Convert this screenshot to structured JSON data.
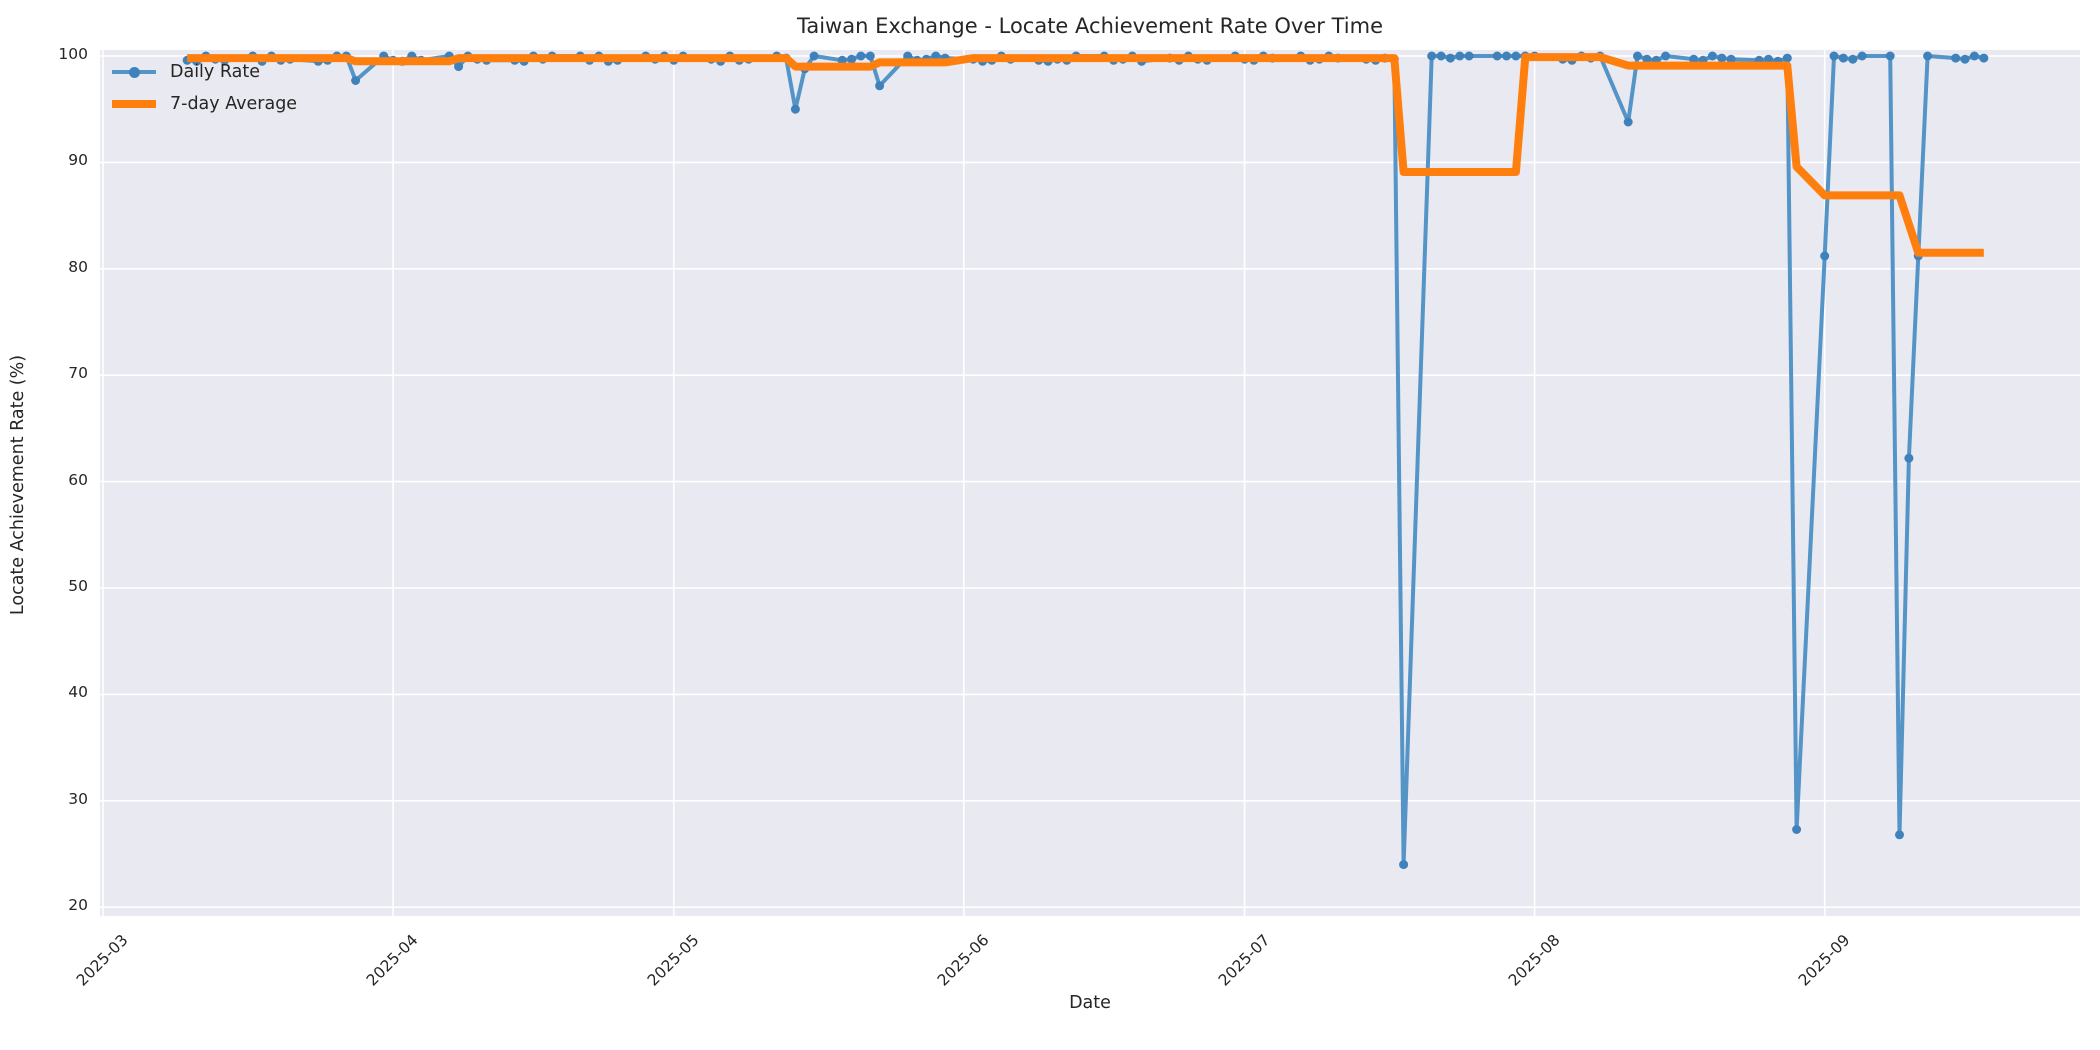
{
  "title": "Taiwan Exchange - Locate Achievement Rate Over Time",
  "axes": {
    "xlabel": "Date",
    "ylabel": "Locate Achievement Rate (%)"
  },
  "colors": {
    "background": "#e9e9f1",
    "grid": "#ffffff",
    "text": "#262626",
    "daily_line": "#5494c7",
    "daily_marker": "#3f82bb",
    "avg_line": "#ff7f0e"
  },
  "chart_data": {
    "type": "line",
    "title": "Taiwan Exchange - Locate Achievement Rate Over Time",
    "xlabel": "Date",
    "ylabel": "Locate Achievement Rate (%)",
    "grid": true,
    "legend_position": "upper left",
    "background": "#e9e9f1",
    "ylim": [
      18.8,
      100.6
    ],
    "y_ticks": [
      20,
      30,
      40,
      50,
      60,
      70,
      80,
      90,
      100
    ],
    "x_ticks": [
      {
        "label": "2025-03",
        "date": "2025-03-01"
      },
      {
        "label": "2025-04",
        "date": "2025-04-01"
      },
      {
        "label": "2025-05",
        "date": "2025-05-01"
      },
      {
        "label": "2025-06",
        "date": "2025-06-01"
      },
      {
        "label": "2025-07",
        "date": "2025-07-01"
      },
      {
        "label": "2025-08",
        "date": "2025-08-01"
      },
      {
        "label": "2025-09",
        "date": "2025-09-01"
      }
    ],
    "x": [
      "2025-03-10",
      "2025-03-11",
      "2025-03-12",
      "2025-03-13",
      "2025-03-14",
      "2025-03-17",
      "2025-03-18",
      "2025-03-19",
      "2025-03-20",
      "2025-03-21",
      "2025-03-24",
      "2025-03-25",
      "2025-03-26",
      "2025-03-27",
      "2025-03-28",
      "2025-03-31",
      "2025-04-01",
      "2025-04-02",
      "2025-04-03",
      "2025-04-04",
      "2025-04-07",
      "2025-04-08",
      "2025-04-09",
      "2025-04-10",
      "2025-04-11",
      "2025-04-14",
      "2025-04-15",
      "2025-04-16",
      "2025-04-17",
      "2025-04-18",
      "2025-04-21",
      "2025-04-22",
      "2025-04-23",
      "2025-04-24",
      "2025-04-25",
      "2025-04-28",
      "2025-04-29",
      "2025-04-30",
      "2025-05-01",
      "2025-05-02",
      "2025-05-05",
      "2025-05-06",
      "2025-05-07",
      "2025-05-08",
      "2025-05-09",
      "2025-05-12",
      "2025-05-13",
      "2025-05-14",
      "2025-05-15",
      "2025-05-16",
      "2025-05-19",
      "2025-05-20",
      "2025-05-21",
      "2025-05-22",
      "2025-05-23",
      "2025-05-26",
      "2025-05-27",
      "2025-05-28",
      "2025-05-29",
      "2025-05-30",
      "2025-06-02",
      "2025-06-03",
      "2025-06-04",
      "2025-06-05",
      "2025-06-06",
      "2025-06-09",
      "2025-06-10",
      "2025-06-11",
      "2025-06-12",
      "2025-06-13",
      "2025-06-16",
      "2025-06-17",
      "2025-06-18",
      "2025-06-19",
      "2025-06-20",
      "2025-06-23",
      "2025-06-24",
      "2025-06-25",
      "2025-06-26",
      "2025-06-27",
      "2025-06-30",
      "2025-07-01",
      "2025-07-02",
      "2025-07-03",
      "2025-07-04",
      "2025-07-07",
      "2025-07-08",
      "2025-07-09",
      "2025-07-10",
      "2025-07-11",
      "2025-07-14",
      "2025-07-15",
      "2025-07-16",
      "2025-07-17",
      "2025-07-18",
      "2025-07-21",
      "2025-07-22",
      "2025-07-23",
      "2025-07-24",
      "2025-07-25",
      "2025-07-28",
      "2025-07-29",
      "2025-07-30",
      "2025-07-31",
      "2025-08-01",
      "2025-08-04",
      "2025-08-05",
      "2025-08-06",
      "2025-08-07",
      "2025-08-08",
      "2025-08-11",
      "2025-08-12",
      "2025-08-13",
      "2025-08-14",
      "2025-08-15",
      "2025-08-18",
      "2025-08-19",
      "2025-08-20",
      "2025-08-21",
      "2025-08-22",
      "2025-08-25",
      "2025-08-26",
      "2025-08-27",
      "2025-08-28",
      "2025-08-29",
      "2025-09-01",
      "2025-09-02",
      "2025-09-03",
      "2025-09-04",
      "2025-09-05",
      "2025-09-08",
      "2025-09-09",
      "2025-09-10",
      "2025-09-11",
      "2025-09-12",
      "2025-09-15",
      "2025-09-16",
      "2025-09-17",
      "2025-09-18"
    ],
    "series": [
      {
        "name": "Daily Rate",
        "color": "#5494c7",
        "marker_color": "#3f82bb",
        "marker": "circle",
        "values": [
          99.6,
          99.5,
          100,
          99.7,
          99.6,
          100,
          99.5,
          100,
          99.6,
          99.7,
          99.5,
          99.6,
          100,
          100,
          97.7,
          100,
          99.6,
          99.5,
          100,
          99.6,
          100,
          99.0,
          100,
          99.7,
          99.6,
          99.6,
          99.5,
          100,
          99.7,
          100,
          100,
          99.6,
          100,
          99.5,
          99.6,
          100,
          99.7,
          100,
          99.6,
          100,
          99.7,
          99.5,
          100,
          99.6,
          99.7,
          100,
          99.8,
          95.0,
          98.8,
          100,
          99.6,
          99.7,
          100,
          100,
          97.2,
          100,
          99.6,
          99.7,
          100,
          99.8,
          99.7,
          99.5,
          99.6,
          100,
          99.7,
          99.6,
          99.5,
          99.7,
          99.6,
          100,
          100,
          99.6,
          99.7,
          100,
          99.5,
          99.8,
          99.6,
          100,
          99.7,
          99.6,
          100,
          99.7,
          99.6,
          100,
          99.8,
          100,
          99.6,
          99.7,
          100,
          99.8,
          99.7,
          99.6,
          99.8,
          99.7,
          24.0,
          100,
          100,
          99.8,
          100,
          100,
          100,
          100,
          100,
          100,
          100,
          99.7,
          99.6,
          100,
          99.8,
          100,
          93.8,
          100,
          99.7,
          99.6,
          100,
          99.7,
          99.6,
          100,
          99.8,
          99.7,
          99.6,
          99.7,
          99.5,
          99.8,
          27.3,
          81.2,
          100,
          99.8,
          99.7,
          100,
          100,
          26.8,
          62.2,
          81.2,
          100,
          99.8,
          99.7,
          100,
          99.8
        ]
      },
      {
        "name": "7-day Average",
        "color": "#ff7f0e",
        "marker": "none",
        "values": [
          99.8,
          99.8,
          99.8,
          99.8,
          99.8,
          99.8,
          99.8,
          99.8,
          99.8,
          99.8,
          99.8,
          99.8,
          99.8,
          99.8,
          99.5,
          99.5,
          99.5,
          99.5,
          99.5,
          99.5,
          99.5,
          99.8,
          99.8,
          99.8,
          99.8,
          99.8,
          99.8,
          99.8,
          99.8,
          99.8,
          99.8,
          99.8,
          99.8,
          99.8,
          99.8,
          99.8,
          99.8,
          99.8,
          99.8,
          99.8,
          99.8,
          99.8,
          99.8,
          99.8,
          99.8,
          99.8,
          99.8,
          99.0,
          99.0,
          99.0,
          99.0,
          99.0,
          99.0,
          99.0,
          99.4,
          99.4,
          99.4,
          99.4,
          99.4,
          99.4,
          99.8,
          99.8,
          99.8,
          99.8,
          99.8,
          99.8,
          99.8,
          99.8,
          99.8,
          99.8,
          99.8,
          99.8,
          99.8,
          99.8,
          99.8,
          99.8,
          99.8,
          99.8,
          99.8,
          99.8,
          99.8,
          99.8,
          99.8,
          99.8,
          99.8,
          99.8,
          99.8,
          99.8,
          99.8,
          99.8,
          99.8,
          99.8,
          99.8,
          99.8,
          89.1,
          89.1,
          89.1,
          89.1,
          89.1,
          89.1,
          89.1,
          89.1,
          89.1,
          99.9,
          99.9,
          99.9,
          99.9,
          99.9,
          99.9,
          99.9,
          99.1,
          99.1,
          99.1,
          99.1,
          99.1,
          99.1,
          99.1,
          99.1,
          99.1,
          99.1,
          99.1,
          99.1,
          99.1,
          99.1,
          89.6,
          86.9,
          86.9,
          86.9,
          86.9,
          86.9,
          86.9,
          86.9,
          84.2,
          81.5,
          81.5,
          81.5,
          81.5,
          81.5,
          81.5
        ]
      }
    ]
  }
}
